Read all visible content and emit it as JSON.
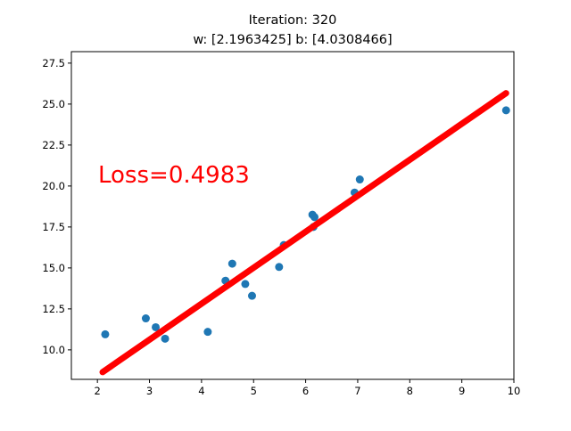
{
  "chart_data": {
    "type": "scatter",
    "title": "Iteration: 320",
    "subtitle": "w: [2.1963425] b: [4.0308466]",
    "xlabel": "",
    "ylabel": "",
    "xlim": [
      1.5,
      10.0
    ],
    "ylim": [
      8.2,
      28.2
    ],
    "grid": false,
    "x_ticks": [
      2,
      3,
      4,
      5,
      6,
      7,
      8,
      9,
      10
    ],
    "y_ticks": [
      10.0,
      12.5,
      15.0,
      17.5,
      20.0,
      22.5,
      25.0,
      27.5
    ],
    "x_tick_labels": [
      "2",
      "3",
      "4",
      "5",
      "6",
      "7",
      "8",
      "9",
      "10"
    ],
    "y_tick_labels": [
      "10.0",
      "12.5",
      "15.0",
      "17.5",
      "20.0",
      "22.5",
      "25.0",
      "27.5"
    ],
    "annotation": {
      "text": "Loss=0.4983",
      "color": "#ff0000"
    },
    "series": [
      {
        "kind": "points",
        "color": "#1f77b4",
        "points": [
          [
            2.15,
            10.95
          ],
          [
            2.93,
            11.92
          ],
          [
            3.12,
            11.38
          ],
          [
            3.3,
            10.68
          ],
          [
            4.12,
            11.1
          ],
          [
            4.46,
            14.22
          ],
          [
            4.59,
            15.26
          ],
          [
            4.84,
            14.02
          ],
          [
            4.97,
            13.3
          ],
          [
            5.49,
            15.06
          ],
          [
            5.58,
            16.4
          ],
          [
            6.13,
            18.25
          ],
          [
            6.17,
            18.1
          ],
          [
            6.15,
            17.5
          ],
          [
            6.94,
            19.6
          ],
          [
            7.04,
            20.4
          ],
          [
            9.85,
            24.62
          ]
        ]
      },
      {
        "kind": "fit-line",
        "color": "#ff0000",
        "w": 2.1963425,
        "b": 4.0308466,
        "x": [
          2.1,
          9.85
        ]
      }
    ]
  }
}
